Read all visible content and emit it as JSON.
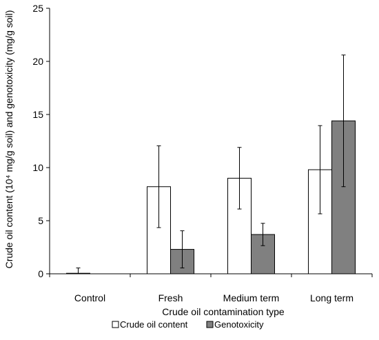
{
  "chart_data": {
    "type": "bar",
    "categories": [
      "Control",
      "Fresh",
      "Medium term",
      "Long term"
    ],
    "series": [
      {
        "name": "Crude oil content",
        "values": [
          0.05,
          8.2,
          9.0,
          9.8
        ],
        "errors": [
          0.5,
          3.85,
          2.9,
          4.15
        ],
        "color": "#ffffff"
      },
      {
        "name": "Genotoxicity",
        "values": [
          0,
          2.3,
          3.7,
          14.4
        ],
        "errors": [
          null,
          1.75,
          1.05,
          6.2
        ],
        "color": "#808080"
      }
    ],
    "xlabel": "Crude oil contamination type",
    "ylabel": "Crude oil content (10⁴ mg/g soil) and genotoxicity (mg/g soil)",
    "ylim": [
      0,
      25
    ],
    "yticks": [
      "0",
      "5",
      "10",
      "15",
      "20",
      "25"
    ],
    "grid": false,
    "legend": "bottom"
  }
}
